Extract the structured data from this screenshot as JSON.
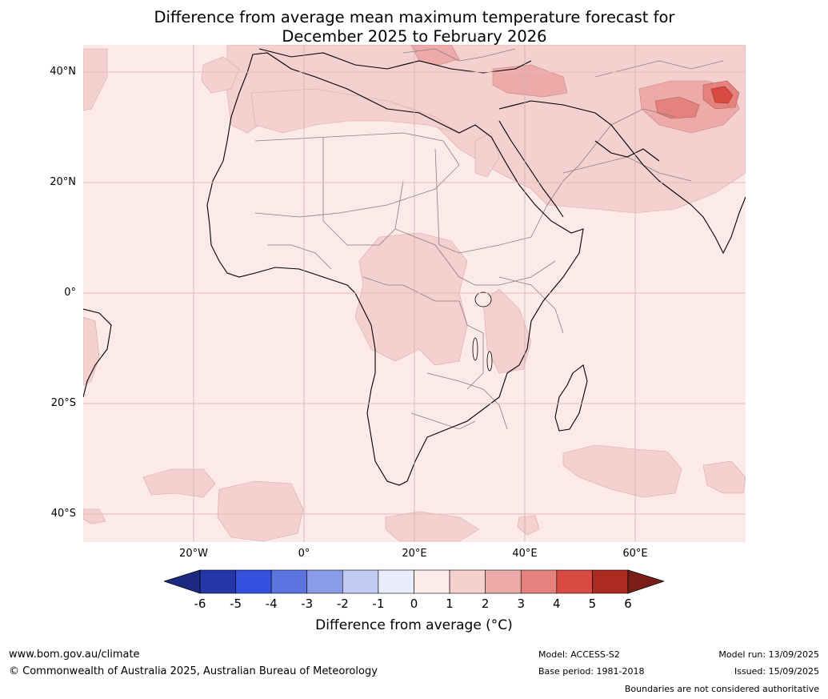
{
  "title": {
    "line1": "Difference from average mean maximum temperature forecast for",
    "line2": "December 2025 to February 2026"
  },
  "axes": {
    "lat_labels": [
      "40°N",
      "20°N",
      "0°",
      "20°S",
      "40°S"
    ],
    "lon_labels": [
      "20°W",
      "0°",
      "20°E",
      "40°E",
      "60°E"
    ]
  },
  "colorbar": {
    "ticks": [
      "-6",
      "-5",
      "-4",
      "-3",
      "-2",
      "-1",
      "0",
      "1",
      "2",
      "3",
      "4",
      "5",
      "6"
    ],
    "colors": [
      "#2436a8",
      "#3450dc",
      "#5b74e0",
      "#8a9ce8",
      "#c3cbf2",
      "#e9ecfa",
      "#fbeae8",
      "#f4d0cf",
      "#ecaaa8",
      "#e4827e",
      "#d94b42",
      "#ab2a22"
    ],
    "under_color": "#1b2a80",
    "over_color": "#7a1d16",
    "label": "Difference from average (°C)"
  },
  "map": {
    "background_color": "#fbeae8",
    "anomaly_1_2_color": "#f4d0cf",
    "anomaly_2_3_color": "#ecaaa8",
    "anomaly_3_4_color": "#e4827e",
    "anomaly_4_5_color": "#d94b42",
    "gridline_color": "#e8b9b9"
  },
  "footer": {
    "website": "www.bom.gov.au/climate",
    "copyright": "© Commonwealth of Australia 2025, Australian Bureau of Meteorology",
    "model": "Model: ACCESS-S2",
    "base_period": "Base period: 1981-2018",
    "model_run": "Model run: 13/09/2025",
    "issued": "Issued: 15/09/2025",
    "disclaimer": "Boundaries are not considered authoritative"
  }
}
